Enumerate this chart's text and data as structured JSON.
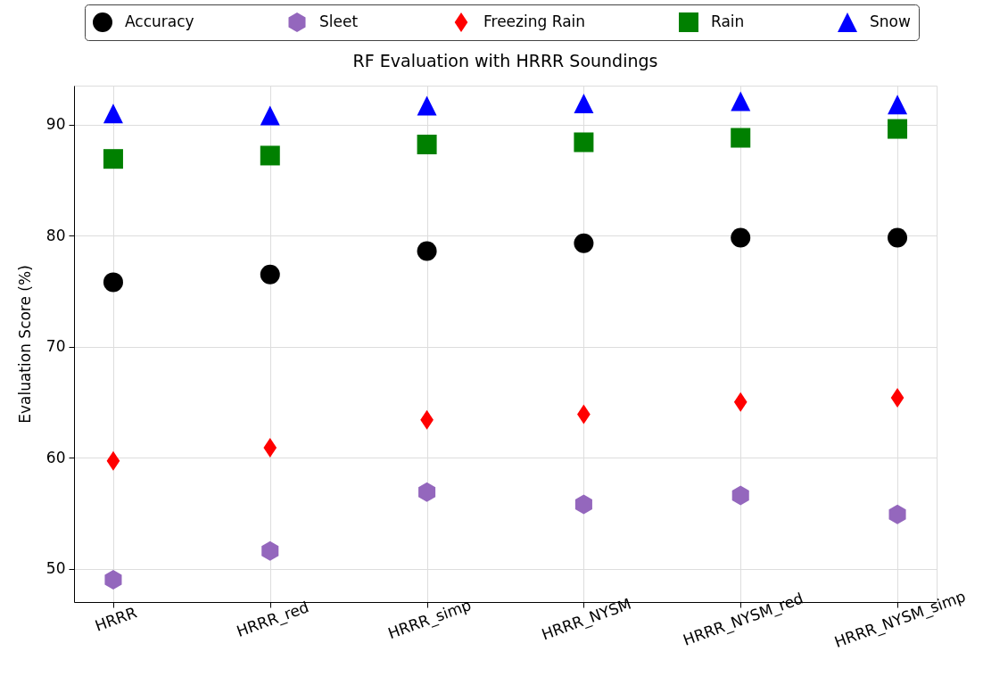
{
  "chart_data": {
    "type": "scatter",
    "title": "RF Evaluation with HRRR Soundings",
    "ylabel": "Evaluation Score (%)",
    "categories": [
      "HRRR",
      "HRRR_red",
      "HRRR_simp",
      "HRRR_NYSM",
      "HRRR_NYSM_red",
      "HRRR_NYSM_simp"
    ],
    "ylim": [
      47,
      93.5
    ],
    "yticks": [
      50,
      60,
      70,
      80,
      90
    ],
    "series": [
      {
        "name": "Accuracy",
        "color": "#000000",
        "marker": "circle",
        "values": [
          75.8,
          76.5,
          78.6,
          79.3,
          79.8,
          79.8
        ]
      },
      {
        "name": "Sleet",
        "color": "#9467bd",
        "values": [
          49.0,
          51.6,
          56.9,
          55.8,
          56.6,
          54.9
        ]
      },
      {
        "name": "Freezing Rain",
        "color": "#ff0000",
        "marker": "diamond",
        "values": [
          59.7,
          60.9,
          63.4,
          63.9,
          65.0,
          65.4
        ]
      },
      {
        "name": "Rain",
        "color": "#008000",
        "marker": "square",
        "values": [
          86.9,
          87.2,
          88.2,
          88.4,
          88.8,
          89.6
        ]
      },
      {
        "name": "Snow",
        "color": "#0000ff",
        "marker": "triangle",
        "values": [
          91.0,
          90.8,
          91.7,
          91.9,
          92.1,
          91.8
        ]
      }
    ],
    "grid": true,
    "legend": "top"
  }
}
